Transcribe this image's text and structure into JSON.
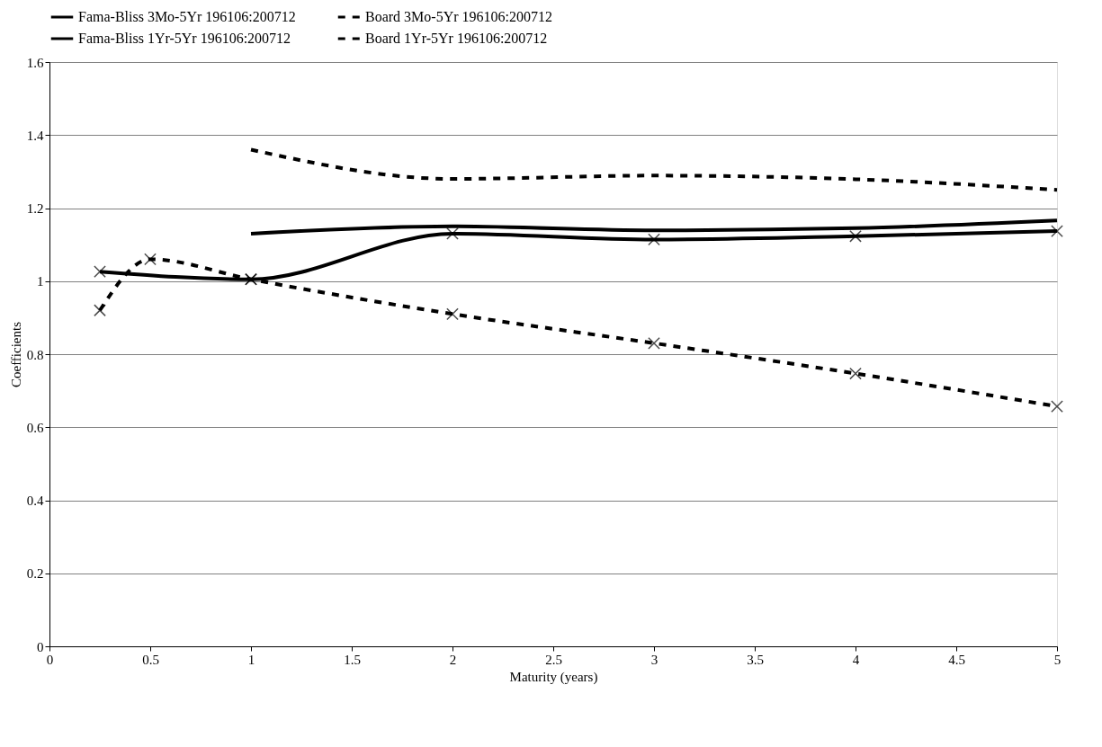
{
  "chart_data": {
    "type": "line",
    "xlabel": "Maturity (years)",
    "ylabel": "Coefficients",
    "xlim": [
      0,
      5
    ],
    "xticks": [
      0,
      0.5,
      1,
      1.5,
      2,
      2.5,
      3,
      3.5,
      4,
      4.5,
      5
    ],
    "ylim": [
      0,
      1.6
    ],
    "yticks": [
      0,
      0.2,
      0.4,
      0.6,
      0.8,
      1,
      1.2,
      1.4,
      1.6
    ],
    "grid": "y",
    "legend": "top",
    "series": [
      {
        "name": "Fama-Bliss 3Mo-5Yr 196106:200712",
        "color": "#000000",
        "line_style": "solid",
        "marker": "cross",
        "x": [
          0.25,
          1,
          2,
          3,
          4,
          5
        ],
        "values": [
          1.026,
          1.005,
          1.13,
          1.114,
          1.123,
          1.137
        ]
      },
      {
        "name": "Board 3Mo-5Yr 196106:200712",
        "color": "#000000",
        "line_style": "dashed",
        "marker": "cross",
        "x": [
          0.25,
          0.5,
          1,
          2,
          3,
          4,
          5
        ],
        "values": [
          0.92,
          1.06,
          1.005,
          0.91,
          0.83,
          0.747,
          0.657
        ]
      },
      {
        "name": "Fama-Bliss 1Yr-5Yr 196106:200712",
        "color": "#000000",
        "line_style": "solid",
        "marker": "none",
        "x": [
          1,
          2,
          3,
          4,
          5
        ],
        "values": [
          1.13,
          1.15,
          1.139,
          1.145,
          1.166
        ]
      },
      {
        "name": "Board 1Yr-5Yr 196106:200712",
        "color": "#000000",
        "line_style": "dashed",
        "marker": "none",
        "x": [
          1,
          2,
          3,
          4,
          5
        ],
        "values": [
          1.36,
          1.28,
          1.289,
          1.279,
          1.25
        ]
      }
    ]
  }
}
